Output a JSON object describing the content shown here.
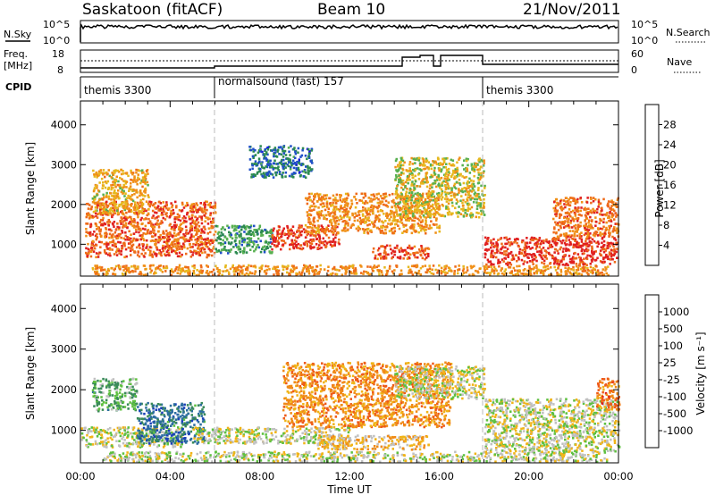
{
  "header": {
    "title": "Saskatoon (fitACF)",
    "beam": "Beam 10",
    "date": "21/Nov/2011"
  },
  "top_panels": {
    "nsky_label": "N.Sky",
    "nsky_ticks": [
      "10^5",
      "10^0"
    ],
    "nsearch_label": "N.Search",
    "freq_label_line1": "Freq.",
    "freq_label_line2": "[MHz]",
    "freq_ticks": [
      "18",
      "8"
    ],
    "nave_ticks": [
      "60",
      "0"
    ],
    "nave_label": "Nave",
    "cpid_label": "CPID",
    "cpid_segments": [
      "themis 3300",
      "normalsound (fast) 157",
      "themis 3300"
    ]
  },
  "chart_data": [
    {
      "type": "heatmap",
      "name": "power",
      "ylabel": "Slant Range [km]",
      "xlabel": "Time UT",
      "ylim": [
        200,
        4600
      ],
      "yticks": [
        "1000",
        "2000",
        "3000",
        "4000"
      ],
      "xticks": [
        "00:00",
        "04:00",
        "08:00",
        "12:00",
        "16:00",
        "20:00",
        "00:00"
      ],
      "colorbar": {
        "label": "Power [dB]",
        "ticks": [
          "4",
          "8",
          "12",
          "16",
          "20",
          "24",
          "28"
        ],
        "colors": [
          "#1a1adc",
          "#2050c8",
          "#2c8a50",
          "#58b050",
          "#e6b81e",
          "#f09018",
          "#ee6a1a",
          "#e02020"
        ]
      },
      "regions": [
        {
          "t0": 0.2,
          "t1": 6.0,
          "r0": 700,
          "r1": 2100,
          "level": 0.82
        },
        {
          "t0": 0.5,
          "t1": 3.0,
          "r0": 1800,
          "r1": 2900,
          "level": 0.62
        },
        {
          "t0": 6.0,
          "t1": 8.5,
          "r0": 800,
          "r1": 1500,
          "level": 0.35
        },
        {
          "t0": 7.5,
          "t1": 10.3,
          "r0": 2700,
          "r1": 3500,
          "level": 0.25
        },
        {
          "t0": 8.5,
          "t1": 11.5,
          "r0": 900,
          "r1": 1500,
          "level": 0.9
        },
        {
          "t0": 10.0,
          "t1": 16.0,
          "r0": 1300,
          "r1": 2300,
          "level": 0.72
        },
        {
          "t0": 13.0,
          "t1": 15.5,
          "r0": 650,
          "r1": 1000,
          "level": 0.86
        },
        {
          "t0": 14.0,
          "t1": 18.0,
          "r0": 1700,
          "r1": 3200,
          "level": 0.55
        },
        {
          "t0": 18.0,
          "t1": 23.9,
          "r0": 500,
          "r1": 1200,
          "level": 0.93
        },
        {
          "t0": 21.0,
          "t1": 24.0,
          "r0": 1200,
          "r1": 2200,
          "level": 0.78
        },
        {
          "t0": 0.5,
          "t1": 23.5,
          "r0": 250,
          "r1": 500,
          "level": 0.7
        }
      ]
    },
    {
      "type": "heatmap",
      "name": "velocity",
      "ylabel": "Slant Range [km]",
      "xlabel": "Time UT",
      "ylim": [
        200,
        4600
      ],
      "yticks": [
        "1000",
        "2000",
        "3000",
        "4000"
      ],
      "xticks": [
        "00:00",
        "04:00",
        "08:00",
        "12:00",
        "16:00",
        "20:00",
        "00:00"
      ],
      "colorbar": {
        "label": "Velocity [m s⁻¹]",
        "ticks": [
          "1000",
          "500",
          "100",
          "25",
          "-25",
          "-100",
          "-500",
          "-1000"
        ],
        "colors": [
          "#1a40b8",
          "#2c6ea0",
          "#3a8a5a",
          "#5ec040",
          "#c0c0c0",
          "#f0b418",
          "#f08a18",
          "#ee5a18",
          "#e01a1a"
        ]
      },
      "regions": [
        {
          "t0": 0.0,
          "t1": 4.5,
          "r0": 600,
          "r1": 1100,
          "level": 0.5
        },
        {
          "t0": 2.5,
          "t1": 5.5,
          "r0": 700,
          "r1": 1700,
          "level": 0.2
        },
        {
          "t0": 0.5,
          "t1": 2.5,
          "r0": 1500,
          "r1": 2300,
          "level": 0.35
        },
        {
          "t0": 5.0,
          "t1": 12.0,
          "r0": 700,
          "r1": 1100,
          "level": 0.5
        },
        {
          "t0": 9.0,
          "t1": 16.5,
          "r0": 1100,
          "r1": 2700,
          "level": 0.72
        },
        {
          "t0": 10.5,
          "t1": 15.5,
          "r0": 550,
          "r1": 900,
          "level": 0.6
        },
        {
          "t0": 14.0,
          "t1": 18.0,
          "r0": 1800,
          "r1": 2600,
          "level": 0.5
        },
        {
          "t0": 18.0,
          "t1": 24.0,
          "r0": 500,
          "r1": 1800,
          "level": 0.5
        },
        {
          "t0": 23.0,
          "t1": 24.0,
          "r0": 1500,
          "r1": 2300,
          "level": 0.78
        },
        {
          "t0": 1.0,
          "t1": 23.5,
          "r0": 250,
          "r1": 500,
          "level": 0.5
        }
      ]
    }
  ]
}
